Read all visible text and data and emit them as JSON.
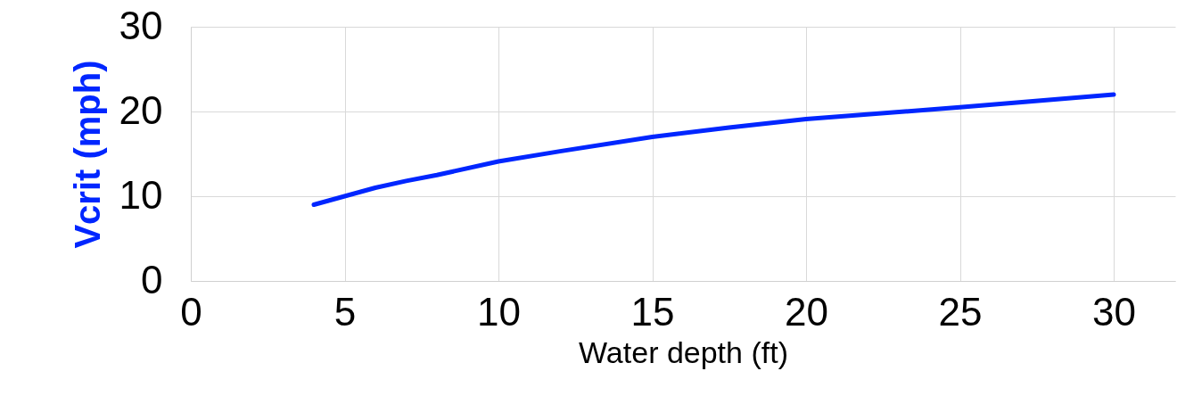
{
  "chart_data": {
    "type": "line",
    "xlabel": "Water depth (ft)",
    "ylabel": "Vcrit (mph)",
    "x": [
      4,
      5,
      6,
      7,
      8,
      10,
      12,
      15,
      17.5,
      20,
      25,
      30
    ],
    "series": [
      {
        "color": "#0026ff",
        "values": [
          9,
          10,
          11,
          11.8,
          12.5,
          14.1,
          15.3,
          17,
          18.1,
          19.1,
          20.5,
          22
        ]
      }
    ],
    "xlim": [
      0,
      32
    ],
    "xticks": [
      0,
      5,
      10,
      15,
      20,
      25,
      30
    ],
    "ylim": [
      0,
      30
    ],
    "yticks": [
      0,
      10,
      20,
      30
    ],
    "grid": true,
    "legend": false,
    "marker": "none",
    "line_style": "solid"
  }
}
